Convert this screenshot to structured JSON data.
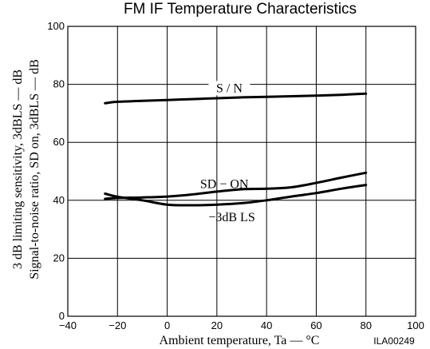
{
  "chart_data": {
    "type": "line",
    "title": "FM IF Temperature Characteristics",
    "xlabel": "Ambient temperature, Ta — °C",
    "ylabel_lines": [
      "Signal-to-noise ratio, SD on, 3dBLS — dB",
      "3 dB limiting sensitivity, 3dBLS — dB"
    ],
    "xlim": [
      -40,
      100
    ],
    "ylim": [
      0,
      100
    ],
    "xticks": [
      -40,
      -20,
      0,
      20,
      40,
      60,
      80,
      100
    ],
    "yticks": [
      0,
      20,
      40,
      60,
      80,
      100
    ],
    "grid": true,
    "series": [
      {
        "name": "S / N",
        "x": [
          -25,
          -20,
          -10,
          0,
          10,
          20,
          30,
          40,
          50,
          60,
          70,
          80
        ],
        "y": [
          73.5,
          74.0,
          74.3,
          74.6,
          74.9,
          75.2,
          75.5,
          75.7,
          75.9,
          76.1,
          76.4,
          76.8
        ]
      },
      {
        "name": "SD − ON",
        "x": [
          -25,
          -20,
          -10,
          0,
          10,
          20,
          30,
          40,
          50,
          60,
          70,
          80
        ],
        "y": [
          40.5,
          40.8,
          41.0,
          41.3,
          42.0,
          43.0,
          43.8,
          44.0,
          44.5,
          46.0,
          47.8,
          49.5
        ]
      },
      {
        "name": "−3dB LS",
        "x": [
          -25,
          -20,
          -10,
          0,
          10,
          20,
          30,
          40,
          50,
          60,
          70,
          80
        ],
        "y": [
          42.3,
          41.2,
          40.0,
          38.5,
          38.3,
          38.5,
          39.0,
          40.0,
          41.3,
          42.5,
          44.0,
          45.3
        ]
      }
    ],
    "image_code": "ILA00249"
  }
}
